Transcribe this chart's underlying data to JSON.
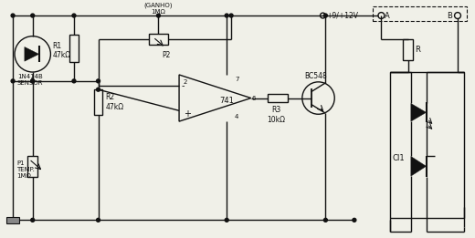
{
  "bg_color": "#f0f0e8",
  "line_color": "#111111",
  "fig_width": 5.2,
  "fig_height": 2.61,
  "dpi": 100,
  "labels": {
    "R1": "R1\n47kΩ",
    "sensor": "1N414B\nSENSOR",
    "R2": "R2\n47kΩ",
    "P1": "P1\nTEMP.\n1MΩ",
    "P2_top": "(GANHO)\n1MΩ",
    "P2_label": "P2",
    "opamp": "741",
    "R3": "R3\n10kΩ",
    "transistor": "BC548",
    "power": "+9/+12V",
    "R_label": "R",
    "CI1_label": "CI1",
    "A_label": "A",
    "B_label": "B",
    "pin2": "2",
    "pin4": "4",
    "pin6": "6",
    "pin7": "7",
    "minus": "-",
    "plus": "+"
  }
}
